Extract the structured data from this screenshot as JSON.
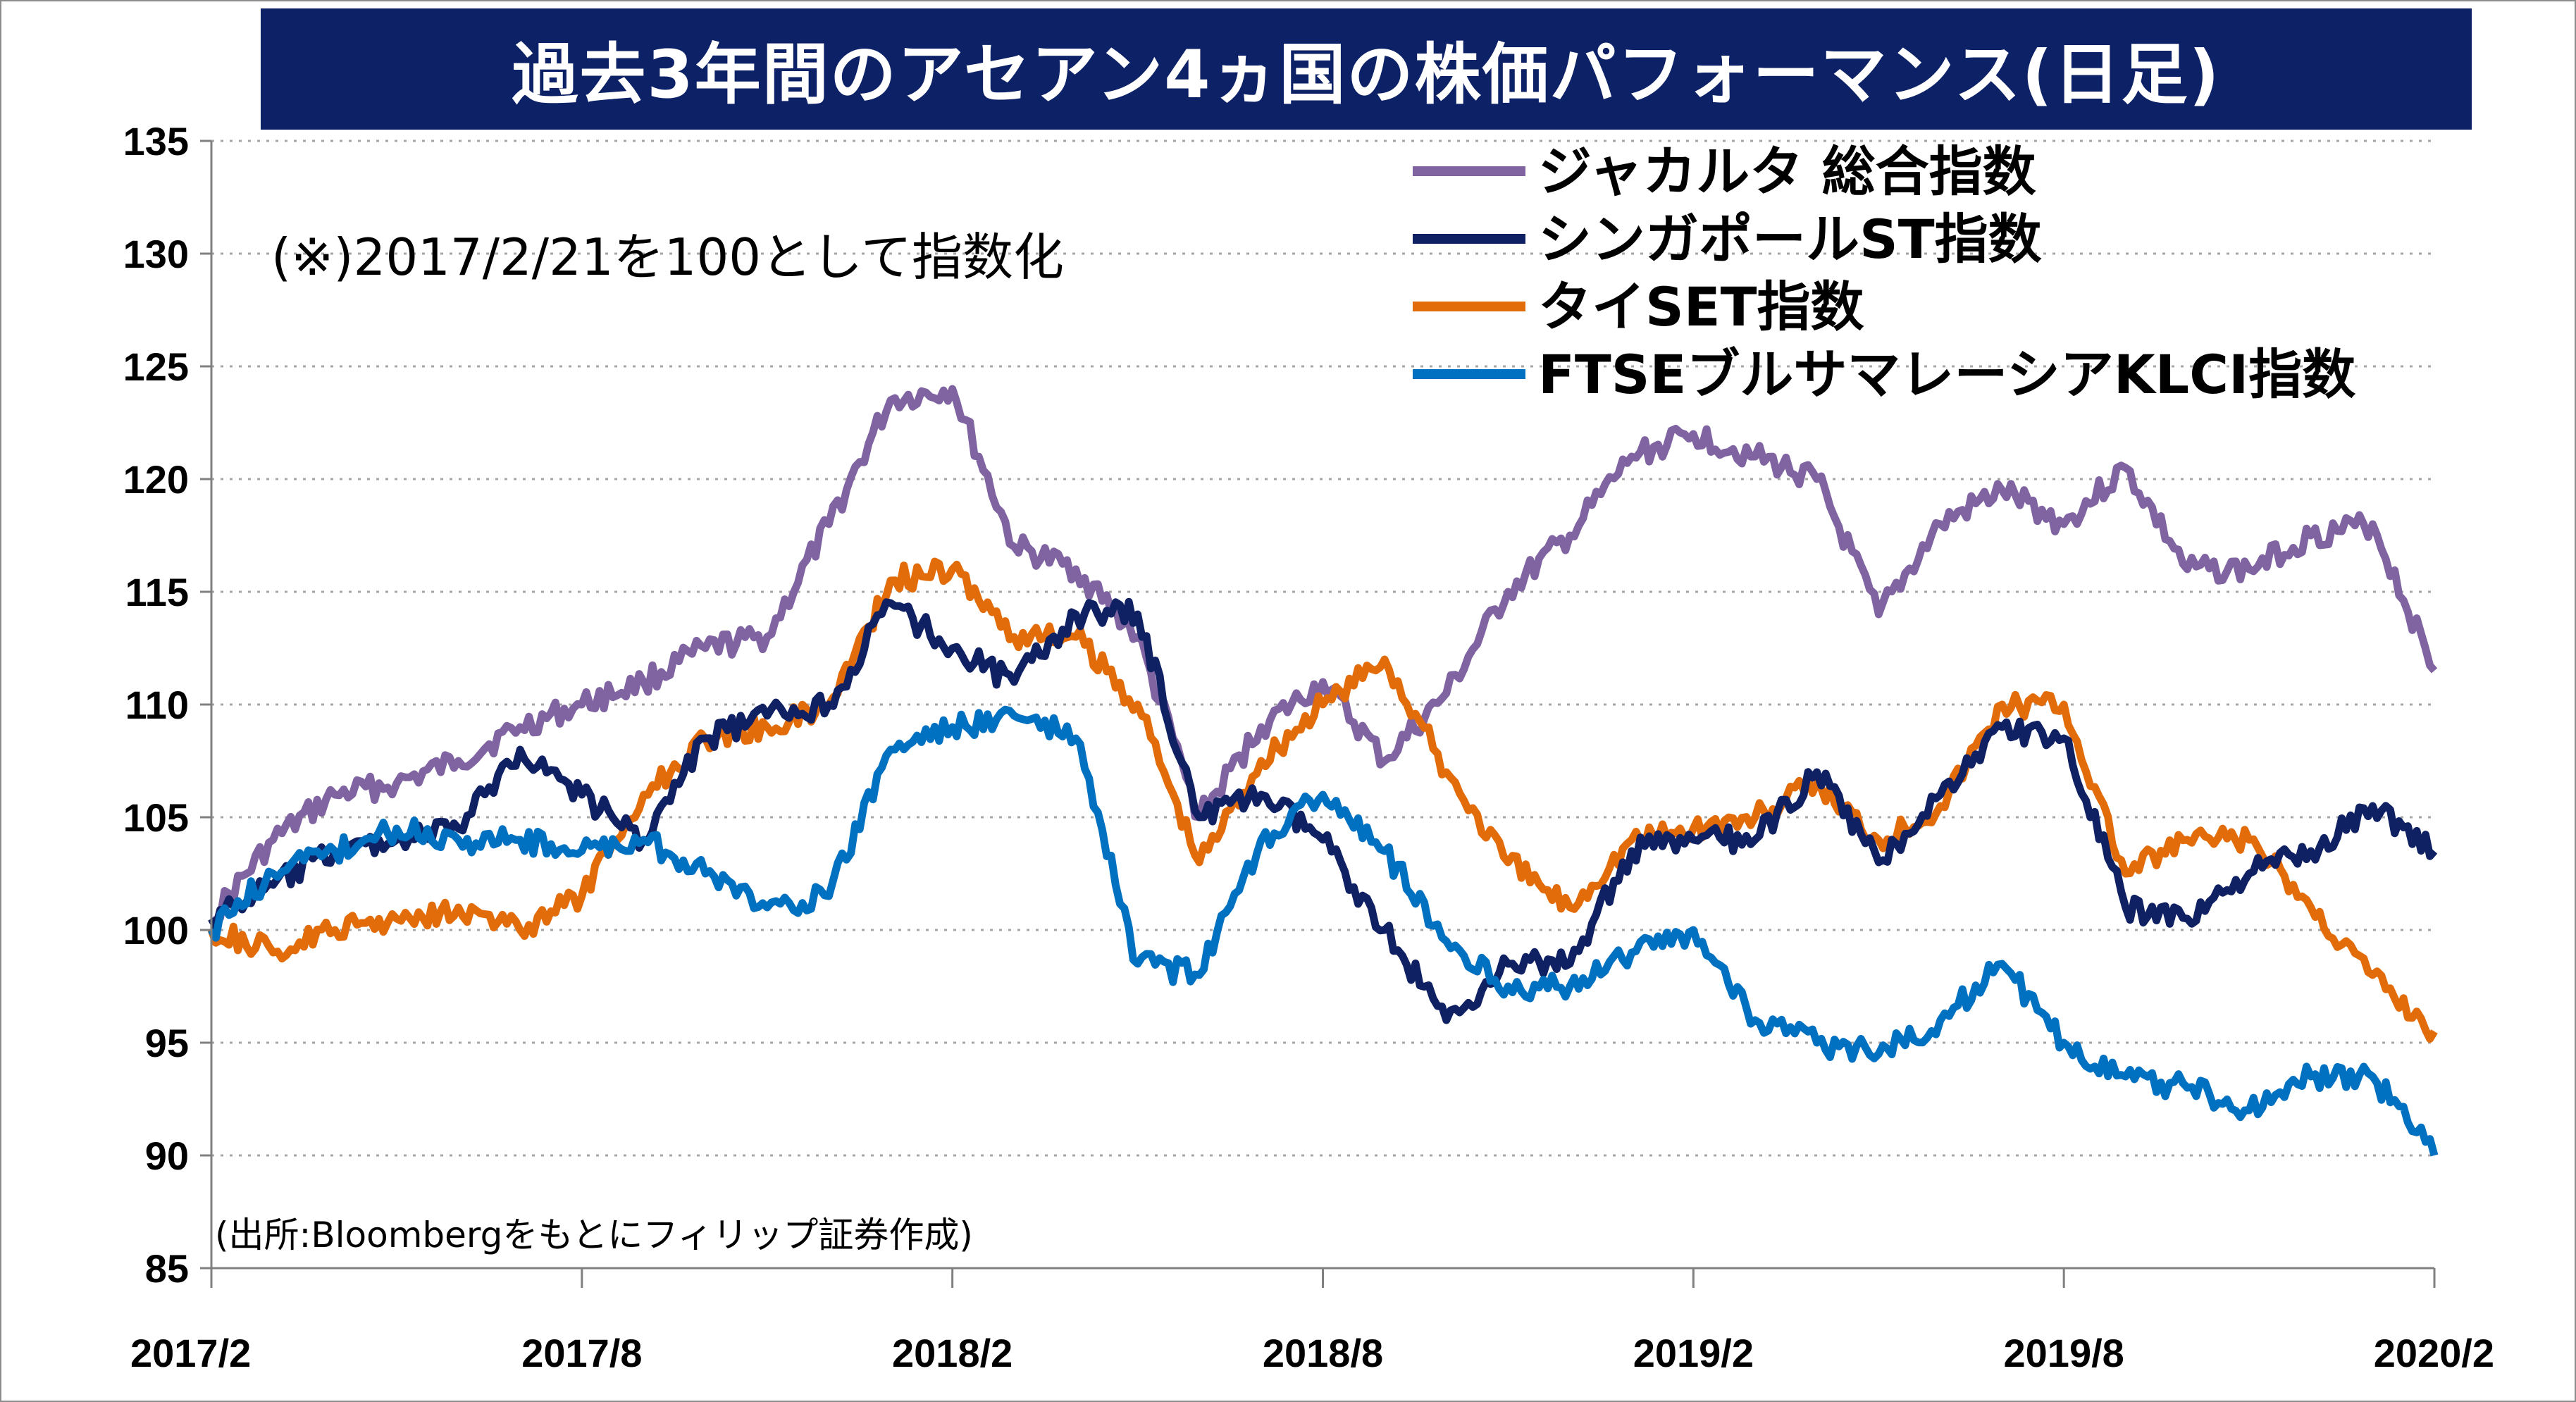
{
  "colors": {
    "title_bg": "#0d2167",
    "jakarta": "#8064a2",
    "singapore": "#0f2063",
    "thai": "#e36c0a",
    "malaysia": "#0070c0",
    "grid": "#a6a6a6"
  },
  "note": "(※)2017/2/21を100として指数化",
  "source": "(出所:Bloombergをもとにフィリップ証券作成)",
  "chart_data": {
    "type": "line",
    "title": "過去3年間のアセアン4ヵ国の株価パフォーマンス(日足)",
    "xlabel": "",
    "ylabel": "",
    "x_ticks": [
      "2017/2",
      "2017/8",
      "2018/2",
      "2018/8",
      "2019/2",
      "2019/8",
      "2020/2"
    ],
    "x_range": [
      "2017/2",
      "2020/2"
    ],
    "y_ticks": [
      85,
      90,
      95,
      100,
      105,
      110,
      115,
      120,
      125,
      130,
      135
    ],
    "ylim": [
      85,
      135
    ],
    "grid": "horizontal dotted",
    "legend_position": "top-right",
    "x": [
      "2017/2",
      "2017/3",
      "2017/4",
      "2017/5",
      "2017/6",
      "2017/7",
      "2017/8",
      "2017/9",
      "2017/10",
      "2017/11",
      "2017/12",
      "2018/1",
      "2018/2",
      "2018/3",
      "2018/4",
      "2018/5",
      "2018/6",
      "2018/7",
      "2018/8",
      "2018/9",
      "2018/10",
      "2018/11",
      "2018/12",
      "2019/1",
      "2019/2",
      "2019/3",
      "2019/4",
      "2019/5",
      "2019/6",
      "2019/7",
      "2019/8",
      "2019/9",
      "2019/10",
      "2019/11",
      "2019/12",
      "2020/1",
      "2020/2"
    ],
    "series": [
      {
        "name": "ジャカルタ 総合指数",
        "color": "#8064a2",
        "values": [
          100.5,
          104,
          106,
          106.5,
          107.5,
          109,
          110,
          111,
          112.5,
          113,
          118,
          123.5,
          124,
          117,
          116,
          113,
          105,
          109,
          111,
          107.5,
          110.5,
          115,
          117.5,
          121,
          122,
          121,
          120,
          114,
          118,
          119.5,
          118,
          120.5,
          116,
          116,
          117.5,
          118,
          111.5
        ]
      },
      {
        "name": "シンガポールST指数",
        "color": "#0f2063",
        "values": [
          100.5,
          102,
          103.5,
          104,
          104.5,
          108,
          106,
          104,
          108.5,
          109.5,
          110,
          114.5,
          112.5,
          111,
          114,
          114,
          105,
          106,
          104,
          100,
          96,
          98.5,
          98.5,
          103.5,
          104,
          104,
          107,
          103,
          106,
          109,
          108.5,
          101,
          100.5,
          102.5,
          103.5,
          105.5,
          103.5
        ]
      },
      {
        "name": "タイSET指数",
        "color": "#e36c0a",
        "values": [
          100,
          99,
          100,
          100.5,
          101,
          100,
          101.5,
          106,
          108.5,
          109,
          110,
          115.5,
          116,
          113,
          113,
          110,
          103,
          107.5,
          110,
          112,
          107,
          103,
          101,
          104,
          104.5,
          105,
          106.5,
          104,
          105.5,
          110,
          110,
          102.5,
          104,
          104,
          101,
          98,
          95.5
        ]
      },
      {
        "name": "FTSEブルサマレーシアKLCI指数",
        "color": "#0070c0",
        "values": [
          100,
          102.5,
          103.5,
          104.5,
          104,
          104,
          103.5,
          104,
          102.5,
          101,
          101.5,
          108,
          109,
          109.5,
          108.5,
          98.5,
          98,
          104,
          106,
          103.5,
          99.5,
          97.5,
          97.5,
          99,
          100,
          96,
          95,
          94.5,
          96,
          98.5,
          95,
          93.5,
          93,
          92,
          93.5,
          93.5,
          90
        ]
      }
    ]
  }
}
